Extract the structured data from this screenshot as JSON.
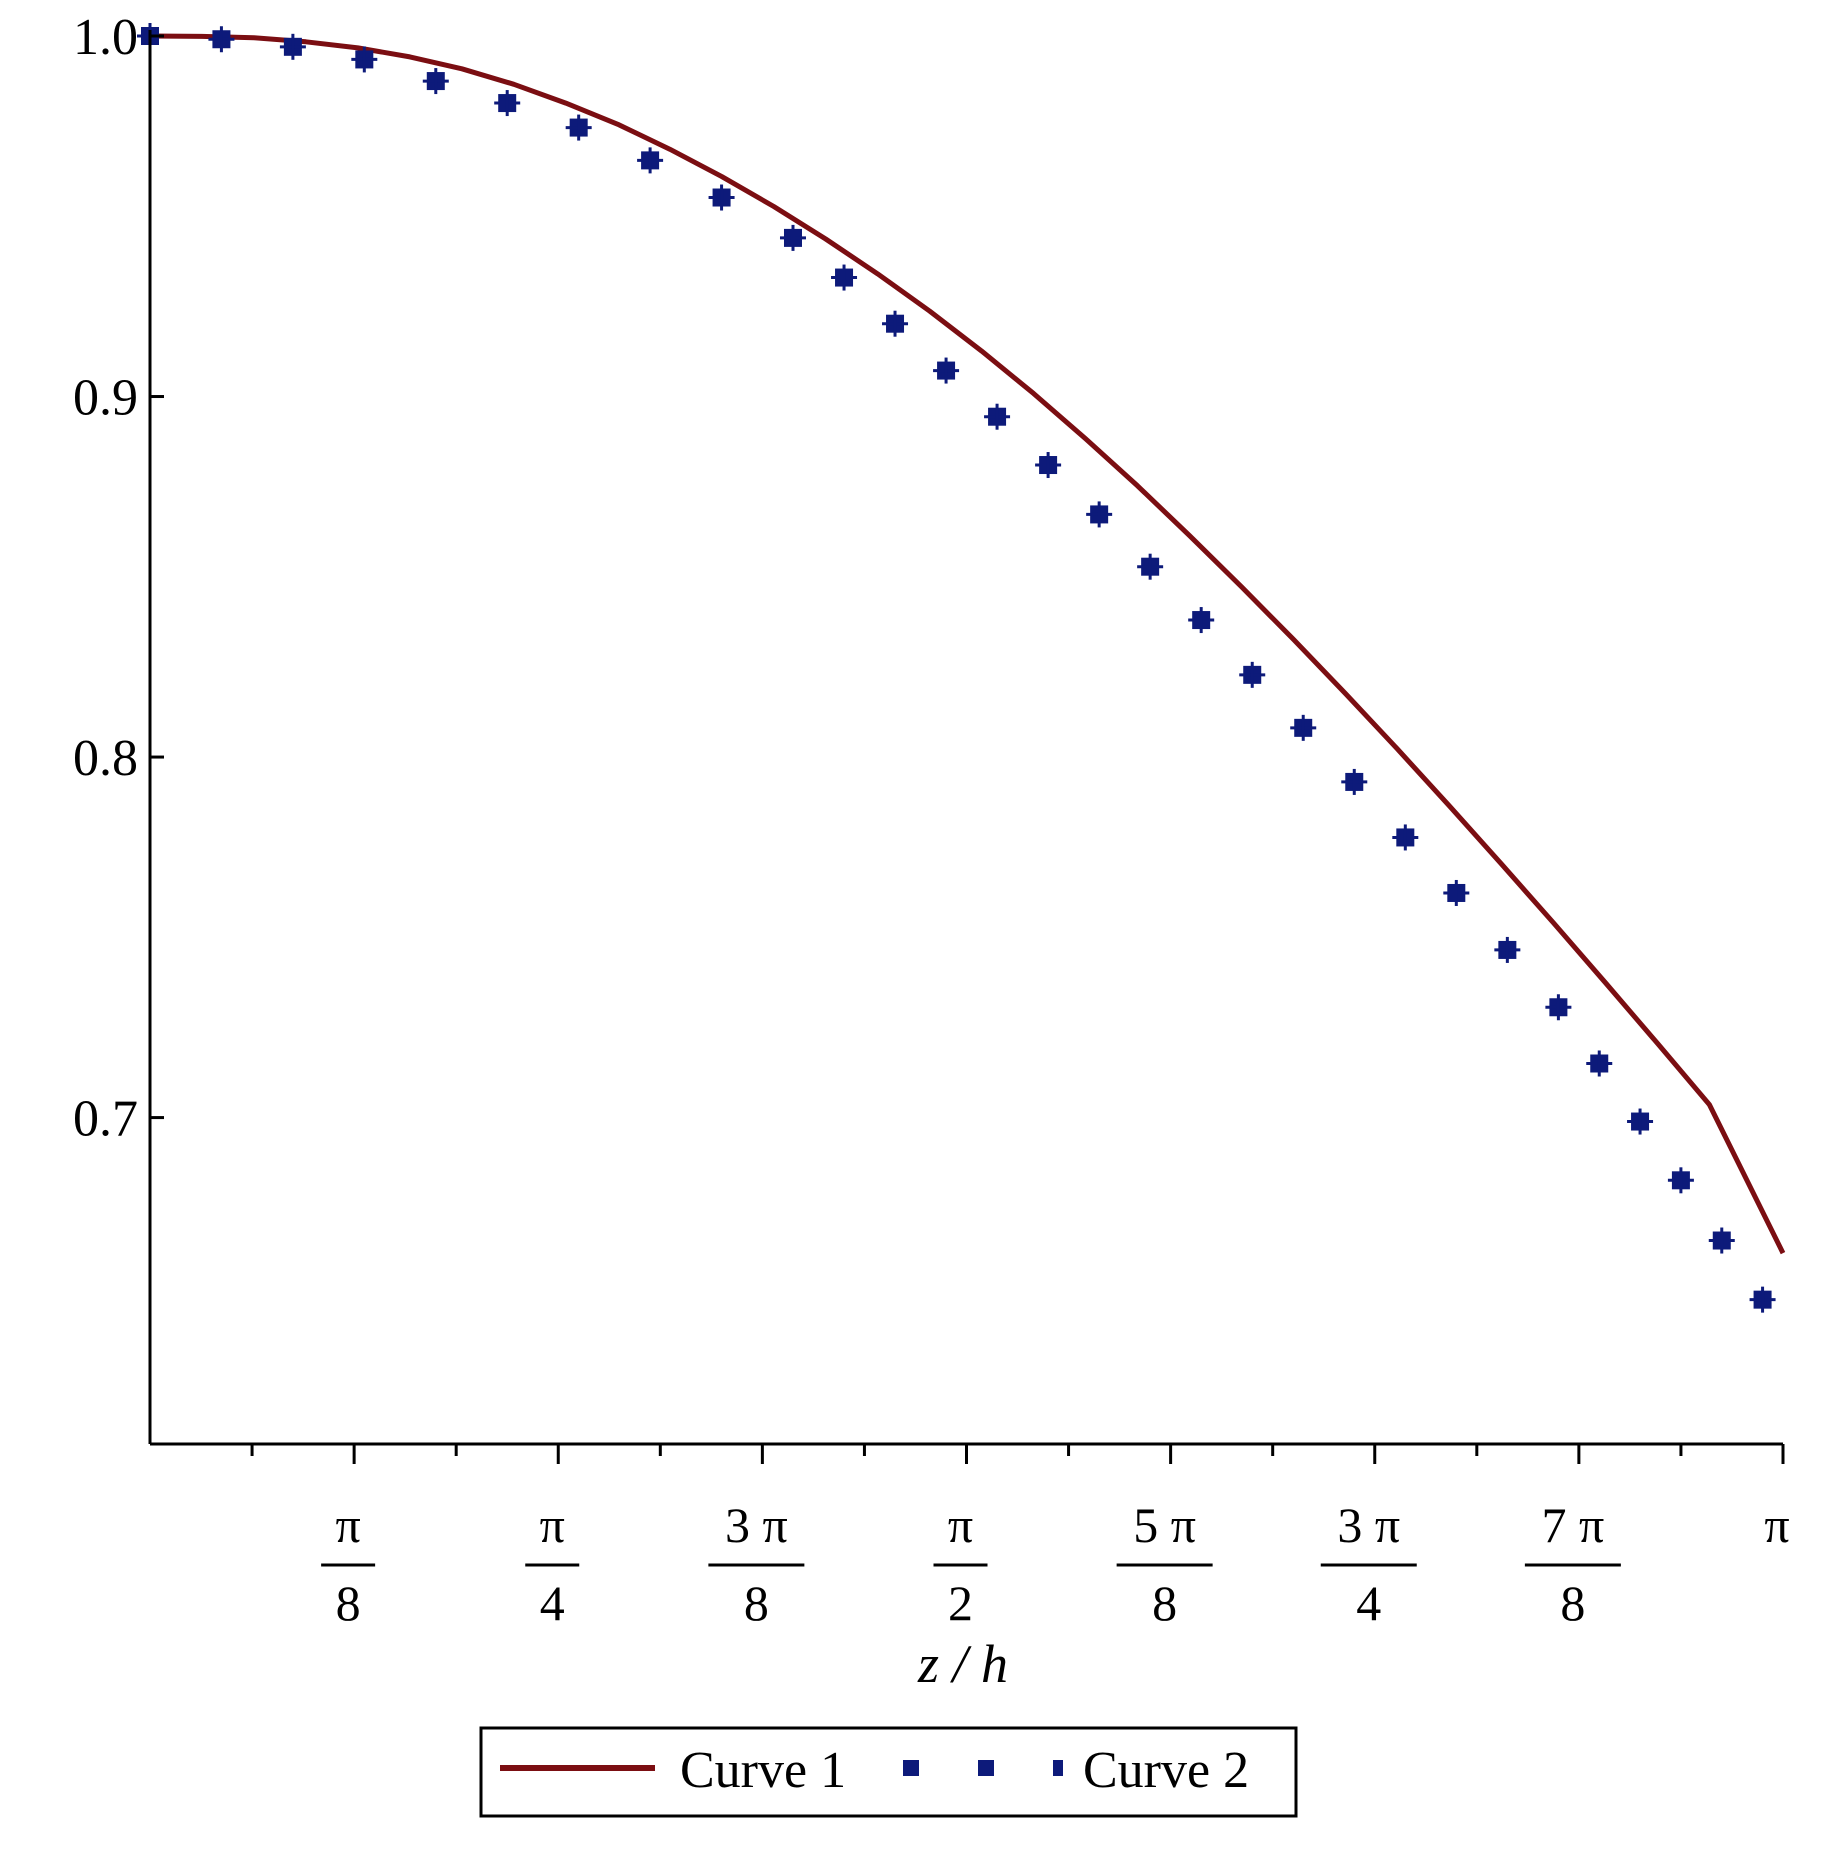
{
  "chart_data": {
    "type": "line",
    "title": "",
    "xlabel": "z / h",
    "ylabel": "",
    "xlim": [
      0,
      3.1416
    ],
    "ylim": [
      0.62,
      1.0
    ],
    "yticks": [
      {
        "value": 1.0,
        "label": "1.0"
      },
      {
        "value": 0.9,
        "label": "0.9"
      },
      {
        "value": 0.8,
        "label": "0.8"
      },
      {
        "value": 0.7,
        "label": "0.7"
      }
    ],
    "xticks": [
      {
        "value": 0.3927,
        "num": "π",
        "den": "8"
      },
      {
        "value": 0.7854,
        "num": "π",
        "den": "4"
      },
      {
        "value": 1.1781,
        "num": "3 π",
        "den": "8"
      },
      {
        "value": 1.5708,
        "num": "π",
        "den": "2"
      },
      {
        "value": 1.9635,
        "num": "5 π",
        "den": "8"
      },
      {
        "value": 2.3562,
        "num": "3 π",
        "den": "4"
      },
      {
        "value": 2.7489,
        "num": "7 π",
        "den": "8"
      },
      {
        "value": 3.1416,
        "num": "π",
        "den": ""
      }
    ],
    "minor_xticks": [
      0.19635,
      0.58905,
      0.98175,
      1.37445,
      1.76715,
      2.15985,
      2.55255,
      2.94525
    ],
    "grid": false,
    "legend_position": "bottom",
    "series": [
      {
        "name": "Curve 1",
        "style": "solid",
        "color": "#7b0e12",
        "x": [
          0,
          0.1,
          0.2,
          0.3,
          0.4,
          0.5,
          0.6,
          0.7,
          0.8,
          0.9,
          1.0,
          1.1,
          1.2,
          1.3,
          1.4,
          1.5,
          1.6,
          1.7,
          1.8,
          1.9,
          2.0,
          2.1,
          2.2,
          2.3,
          2.4,
          2.5,
          2.6,
          2.7,
          2.8,
          2.9,
          3.0,
          3.1416
        ],
        "y": [
          1.0,
          0.9999,
          0.9995,
          0.9984,
          0.9967,
          0.9942,
          0.9909,
          0.9866,
          0.9814,
          0.9755,
          0.9686,
          0.961,
          0.9527,
          0.9437,
          0.934,
          0.9237,
          0.9126,
          0.9008,
          0.8883,
          0.8752,
          0.8614,
          0.8472,
          0.8326,
          0.8176,
          0.8022,
          0.7864,
          0.7703,
          0.754,
          0.7374,
          0.7206,
          0.7036,
          0.6624
        ]
      },
      {
        "name": "Curve 2",
        "style": "points",
        "color": "#0d1a7a",
        "x": [
          0,
          0.1374,
          0.2749,
          0.4123,
          0.5498,
          0.6872,
          0.8247,
          0.9621,
          1.0996,
          1.237,
          1.3352,
          1.4333,
          1.5315,
          1.6296,
          1.7278,
          1.826,
          1.9241,
          2.0223,
          2.1205,
          2.2186,
          2.3168,
          2.415,
          2.5131,
          2.6113,
          2.7095,
          2.7881,
          2.8666,
          2.9452,
          3.0238,
          3.1023
        ],
        "y": [
          1.0,
          0.9991,
          0.997,
          0.9935,
          0.9875,
          0.9814,
          0.9746,
          0.9655,
          0.9552,
          0.944,
          0.933,
          0.9202,
          0.9072,
          0.8944,
          0.881,
          0.8673,
          0.8528,
          0.838,
          0.8228,
          0.8081,
          0.7931,
          0.7777,
          0.7623,
          0.7465,
          0.7306,
          0.715,
          0.6989,
          0.6826,
          0.6659,
          0.6495
        ]
      }
    ]
  }
}
